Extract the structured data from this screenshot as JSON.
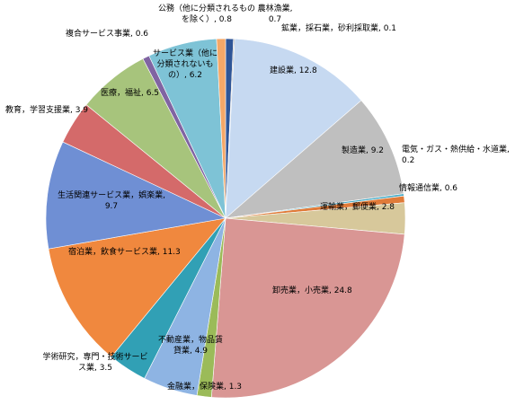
{
  "chart_data": {
    "type": "pie",
    "values": [
      0.7,
      0.1,
      12.8,
      9.2,
      0.2,
      0.6,
      2.8,
      24.8,
      1.3,
      4.9,
      3.5,
      11.3,
      9.7,
      3.9,
      6.5,
      0.6,
      6.2,
      0.8
    ],
    "value_labels": [
      "農林漁業, 0.7",
      "鉱業，採石業，砂利採取業, 0.1",
      "建設業, 12.8",
      "製造業, 9.2",
      "電気・ガス・熱供給・水道業, 0.2",
      "情報通信業, 0.6",
      "運輸業，郵便業, 2.8",
      "卸売業，小売業, 24.8",
      "金融業，保険業, 1.3",
      "不動産業，物品賃貸業, 4.9",
      "学術研究，専門・技術サービス業, 3.5",
      "宿泊業，飲食サービス業, 11.3",
      "生活関連サービス業，娯楽業, 9.7",
      "教育，学習支援業, 3.9",
      "医療，福祉, 6.5",
      "複合サービス事業, 0.6",
      "サービス業（他に分類されないもの）, 6.2",
      "公務（他に分類されるものを除く）, 0.8"
    ],
    "colors": [
      "#2e5597",
      "#a5a5a5",
      "#c6d9f1",
      "#bfbfbf",
      "#4bacc6",
      "#e07b39",
      "#d7c89b",
      "#d99694",
      "#9bbb59",
      "#8eb4e3",
      "#31a0b5",
      "#f0883e",
      "#6f8fd4",
      "#d46a6a",
      "#a7c47c",
      "#8064a2",
      "#7ec3d6",
      "#f5a868"
    ]
  }
}
